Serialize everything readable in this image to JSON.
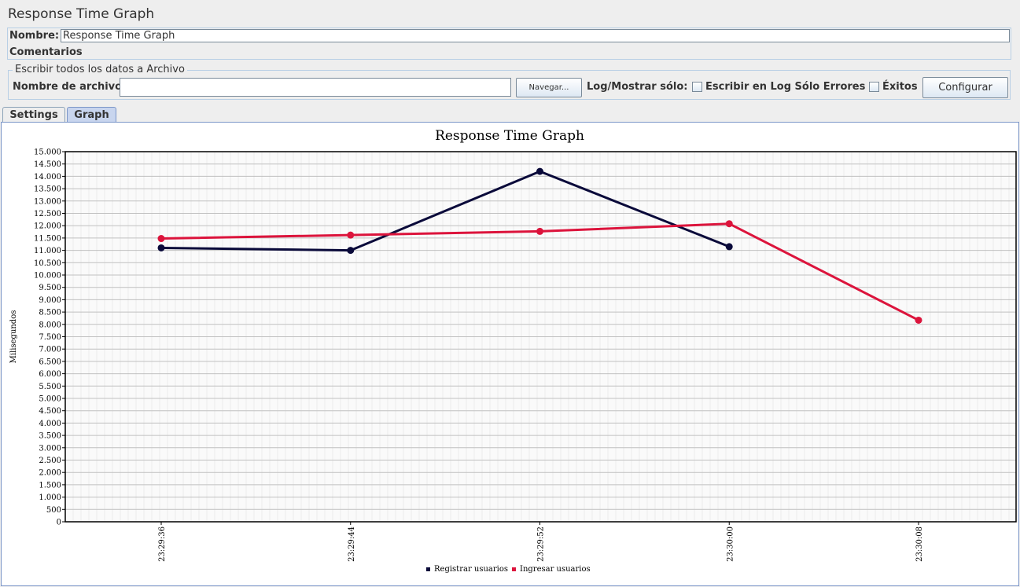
{
  "window": {
    "title": "Response Time Graph"
  },
  "form": {
    "name_label": "Nombre:",
    "name_value": "Response Time Graph",
    "comments_label": "Comentarios"
  },
  "file_panel": {
    "legend": "Escribir todos los datos a Archivo",
    "filename_label": "Nombre de archivo",
    "filename_value": "",
    "browse_label": "Navegar...",
    "log_label": "Log/Mostrar sólo:",
    "errors_checkbox_label": "Escribir en Log Sólo Errores",
    "errors_checked": false,
    "success_checkbox_label": "Éxitos",
    "success_checked": false,
    "config_label": "Configurar"
  },
  "tabs": [
    {
      "label": "Settings",
      "active": false
    },
    {
      "label": "Graph",
      "active": true
    }
  ],
  "chart_data": {
    "type": "line",
    "title": "Response Time Graph",
    "xlabel": "",
    "ylabel": "Milisegundos",
    "ylim": [
      0,
      15000
    ],
    "yticks": [
      0,
      500,
      1000,
      1500,
      2000,
      2500,
      3000,
      3500,
      4000,
      4500,
      5000,
      5500,
      6000,
      6500,
      7000,
      7500,
      8000,
      8500,
      9000,
      9500,
      10000,
      10500,
      11000,
      11500,
      12000,
      12500,
      13000,
      13500,
      14000,
      14500,
      15000
    ],
    "ytick_labels": [
      "0",
      "500",
      "1.000",
      "1.500",
      "2.000",
      "2.500",
      "3.000",
      "3.500",
      "4.000",
      "4.500",
      "5.000",
      "5.500",
      "6.000",
      "6.500",
      "7.000",
      "7.500",
      "8.000",
      "8.500",
      "9.000",
      "9.500",
      "10.000",
      "10.500",
      "11.000",
      "11.500",
      "12.000",
      "12.500",
      "13.000",
      "13.500",
      "14.000",
      "14.500",
      "15.000"
    ],
    "categories": [
      "23:29:36",
      "23:29:44",
      "23:29:52",
      "23:30:00",
      "23:30:08"
    ],
    "series": [
      {
        "name": "Registrar usuarios",
        "color": "#0a0a3a",
        "values": [
          11100,
          11000,
          14200,
          11150,
          null
        ]
      },
      {
        "name": "Ingresar usuarios",
        "color": "#dc143c",
        "values": [
          11480,
          11620,
          11770,
          12080,
          8170
        ]
      }
    ],
    "grid": true,
    "legend_position": "bottom"
  }
}
